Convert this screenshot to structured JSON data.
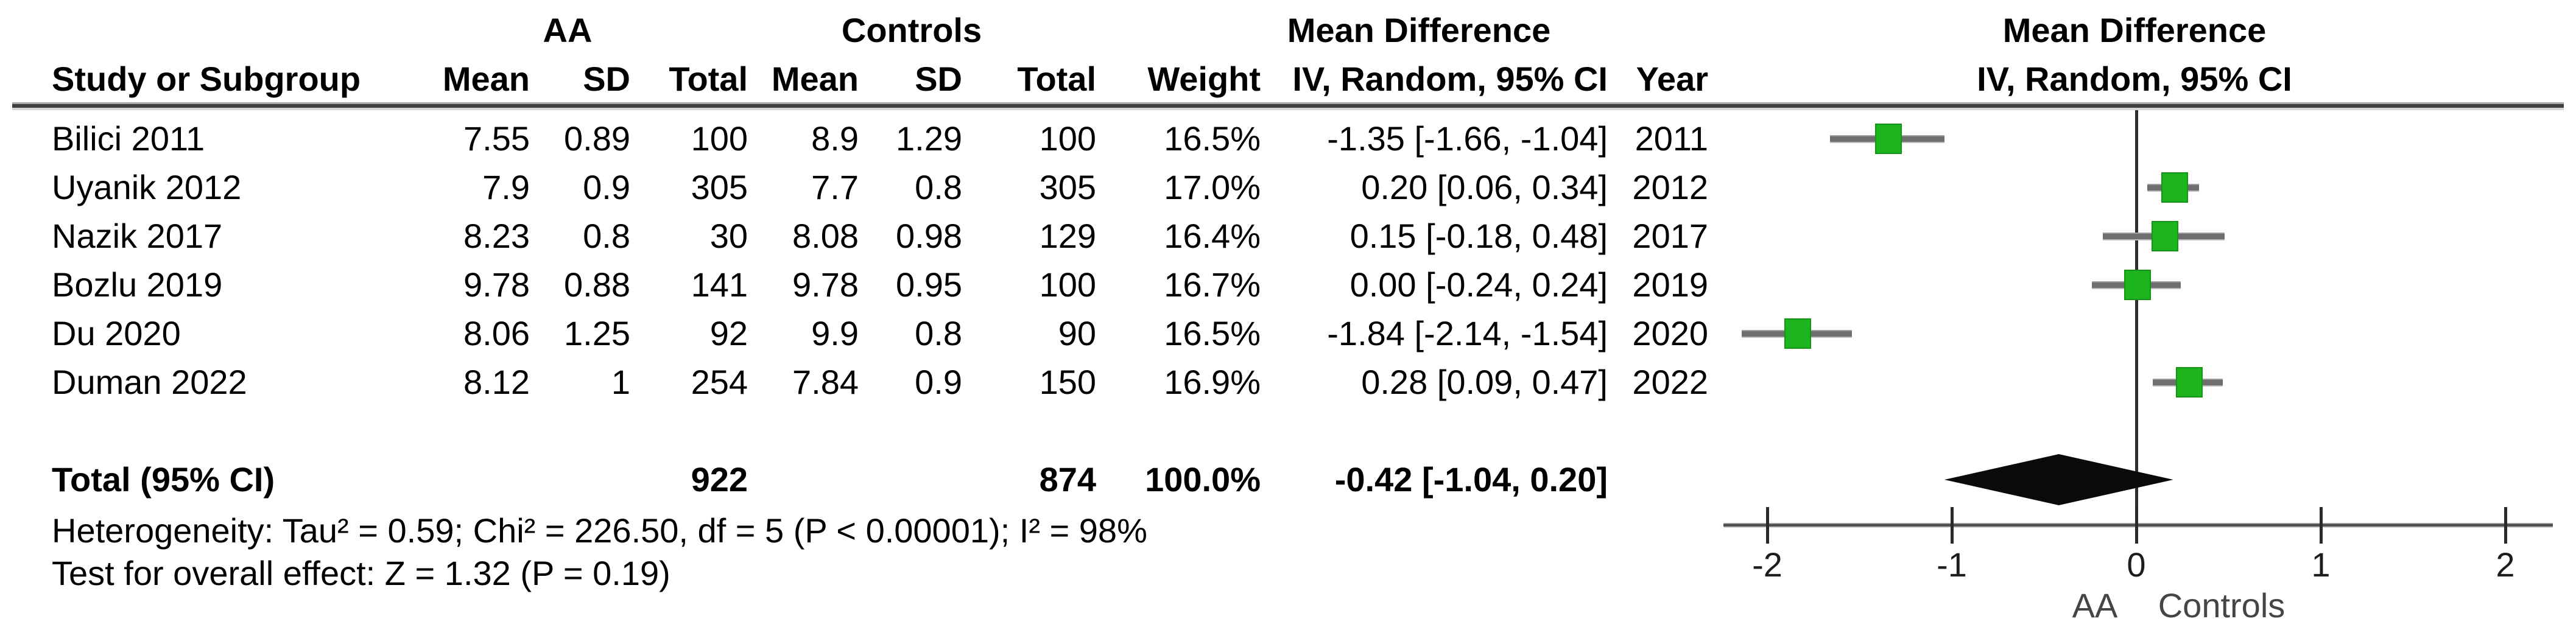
{
  "table": {
    "group1_label": "AA",
    "group2_label": "Controls",
    "md_header": "Mean Difference",
    "col_headers": {
      "study": "Study or Subgroup",
      "mean": "Mean",
      "sd": "SD",
      "total": "Total",
      "weight": "Weight",
      "ci": "IV, Random, 95% CI",
      "year": "Year"
    },
    "rows": [
      {
        "study": "Bilici 2011",
        "mean1": "7.55",
        "sd1": "0.89",
        "total1": "100",
        "mean2": "8.9",
        "sd2": "1.29",
        "total2": "100",
        "weight": "16.5%",
        "ci": "-1.35 [-1.66, -1.04]",
        "year": "2011"
      },
      {
        "study": "Uyanik 2012",
        "mean1": "7.9",
        "sd1": "0.9",
        "total1": "305",
        "mean2": "7.7",
        "sd2": "0.8",
        "total2": "305",
        "weight": "17.0%",
        "ci": "0.20 [0.06, 0.34]",
        "year": "2012"
      },
      {
        "study": "Nazik 2017",
        "mean1": "8.23",
        "sd1": "0.8",
        "total1": "30",
        "mean2": "8.08",
        "sd2": "0.98",
        "total2": "129",
        "weight": "16.4%",
        "ci": "0.15 [-0.18, 0.48]",
        "year": "2017"
      },
      {
        "study": "Bozlu 2019",
        "mean1": "9.78",
        "sd1": "0.88",
        "total1": "141",
        "mean2": "9.78",
        "sd2": "0.95",
        "total2": "100",
        "weight": "16.7%",
        "ci": "0.00 [-0.24, 0.24]",
        "year": "2019"
      },
      {
        "study": "Du 2020",
        "mean1": "8.06",
        "sd1": "1.25",
        "total1": "92",
        "mean2": "9.9",
        "sd2": "0.8",
        "total2": "90",
        "weight": "16.5%",
        "ci": "-1.84 [-2.14, -1.54]",
        "year": "2020"
      },
      {
        "study": "Duman 2022",
        "mean1": "8.12",
        "sd1": "1",
        "total1": "254",
        "mean2": "7.84",
        "sd2": "0.9",
        "total2": "150",
        "weight": "16.9%",
        "ci": "0.28 [0.09, 0.47]",
        "year": "2022"
      }
    ],
    "total_row": {
      "label": "Total (95% CI)",
      "total1": "922",
      "total2": "874",
      "weight": "100.0%",
      "ci": "-0.42 [-1.04, 0.20]"
    },
    "heterogeneity": "Heterogeneity: Tau² = 0.59; Chi² = 226.50, df = 5 (P < 0.00001); I² = 98%",
    "overall_effect": "Test for overall effect: Z = 1.32 (P = 0.19)"
  },
  "plot": {
    "header_line1": "Mean Difference",
    "header_line2": "IV, Random, 95% CI",
    "xlabel_left": "AA",
    "xlabel_right": "Controls"
  },
  "chart_data": {
    "type": "forest",
    "effect_measure": "Mean Difference, IV, Random, 95% CI",
    "xlim": [
      -2,
      2
    ],
    "ticks": [
      -2,
      -1,
      0,
      1,
      2
    ],
    "favours_left": "AA",
    "favours_right": "Controls",
    "studies": [
      {
        "name": "Bilici 2011",
        "year": 2011,
        "mean1": 7.55,
        "sd1": 0.89,
        "n1": 100,
        "mean2": 8.9,
        "sd2": 1.29,
        "n2": 100,
        "weight_pct": 16.5,
        "md": -1.35,
        "low": -1.66,
        "high": -1.04
      },
      {
        "name": "Uyanik 2012",
        "year": 2012,
        "mean1": 7.9,
        "sd1": 0.9,
        "n1": 305,
        "mean2": 7.7,
        "sd2": 0.8,
        "n2": 305,
        "weight_pct": 17.0,
        "md": 0.2,
        "low": 0.06,
        "high": 0.34
      },
      {
        "name": "Nazik 2017",
        "year": 2017,
        "mean1": 8.23,
        "sd1": 0.8,
        "n1": 30,
        "mean2": 8.08,
        "sd2": 0.98,
        "n2": 129,
        "weight_pct": 16.4,
        "md": 0.15,
        "low": -0.18,
        "high": 0.48
      },
      {
        "name": "Bozlu 2019",
        "year": 2019,
        "mean1": 9.78,
        "sd1": 0.88,
        "n1": 141,
        "mean2": 9.78,
        "sd2": 0.95,
        "n2": 100,
        "weight_pct": 16.7,
        "md": 0.0,
        "low": -0.24,
        "high": 0.24
      },
      {
        "name": "Du 2020",
        "year": 2020,
        "mean1": 8.06,
        "sd1": 1.25,
        "n1": 92,
        "mean2": 9.9,
        "sd2": 0.8,
        "n2": 90,
        "weight_pct": 16.5,
        "md": -1.84,
        "low": -2.14,
        "high": -1.54
      },
      {
        "name": "Duman 2022",
        "year": 2022,
        "mean1": 8.12,
        "sd1": 1,
        "n1": 254,
        "mean2": 7.84,
        "sd2": 0.9,
        "n2": 150,
        "weight_pct": 16.9,
        "md": 0.28,
        "low": 0.09,
        "high": 0.47
      }
    ],
    "total": {
      "n1": 922,
      "n2": 874,
      "weight_pct": 100.0,
      "md": -0.42,
      "low": -1.04,
      "high": 0.2
    },
    "heterogeneity": {
      "tau2": 0.59,
      "chi2": 226.5,
      "df": 5,
      "p": "< 0.00001",
      "i2_pct": 98
    },
    "overall_effect": {
      "z": 1.32,
      "p": 0.19
    }
  },
  "colors": {
    "marker_green": "#1eb41e",
    "ci_line_gray": "#6e6e6e",
    "diamond_black": "#0a0a0a"
  }
}
